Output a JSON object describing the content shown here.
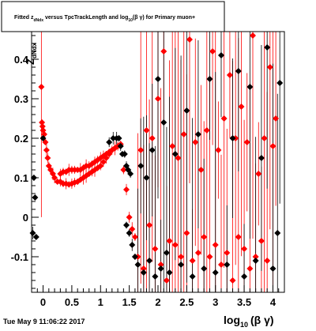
{
  "chart_data": {
    "type": "scatter",
    "title": "Fitted  z",
    "title_sub": "dNdx",
    "title_mid": "  versus TpcTrackLength and log",
    "title_sub2": "10",
    "title_end": "(β γ) for Primary muon+",
    "xlabel": "log",
    "xlabel_sub": "10",
    "xlabel_end": "(β γ)",
    "ylabel": "Z",
    "ylabel_sub": "dNdx",
    "timestamp": "Tue May  9 11:06:22 2017",
    "xlim": [
      -0.2,
      4.2
    ],
    "ylim": [
      -0.19,
      0.47
    ],
    "x_ticks": [
      "0",
      "0.5",
      "1",
      "1.5",
      "2",
      "2.5",
      "3",
      "3.5",
      "4"
    ],
    "y_ticks": [
      "-0.1",
      "0",
      "0.1",
      "0.2",
      "0.3",
      "0.4"
    ],
    "grid": false,
    "series": [
      {
        "color": "#ff0000",
        "marker": "diamond",
        "points": [
          [
            -0.03,
            0.33
          ],
          [
            -0.02,
            0.24
          ],
          [
            -0.01,
            0.23
          ],
          [
            0.0,
            0.22
          ],
          [
            0.02,
            0.21
          ],
          [
            0.04,
            0.19
          ],
          [
            0.06,
            0.17
          ],
          [
            0.08,
            0.15
          ],
          [
            0.1,
            0.13
          ],
          [
            0.13,
            0.12
          ],
          [
            0.17,
            0.11
          ],
          [
            0.2,
            0.1
          ],
          [
            0.25,
            0.09
          ],
          [
            0.3,
            0.09
          ],
          [
            0.35,
            0.085
          ],
          [
            0.4,
            0.085
          ],
          [
            0.45,
            0.083
          ],
          [
            0.5,
            0.085
          ],
          [
            0.55,
            0.088
          ],
          [
            0.6,
            0.09
          ],
          [
            0.65,
            0.095
          ],
          [
            0.7,
            0.1
          ],
          [
            0.75,
            0.105
          ],
          [
            0.8,
            0.11
          ],
          [
            0.85,
            0.115
          ],
          [
            0.9,
            0.12
          ],
          [
            0.95,
            0.125
          ],
          [
            1.0,
            0.13
          ],
          [
            1.05,
            0.14
          ],
          [
            1.1,
            0.15
          ],
          [
            1.15,
            0.16
          ],
          [
            1.2,
            0.17
          ],
          [
            1.25,
            0.175
          ],
          [
            1.3,
            0.18
          ],
          [
            1.35,
            0.185
          ],
          [
            0.3,
            0.11
          ],
          [
            0.35,
            0.115
          ],
          [
            0.4,
            0.115
          ],
          [
            0.45,
            0.12
          ],
          [
            0.5,
            0.12
          ],
          [
            0.55,
            0.12
          ],
          [
            0.6,
            0.12
          ],
          [
            0.65,
            0.12
          ],
          [
            0.7,
            0.125
          ],
          [
            0.75,
            0.13
          ],
          [
            0.8,
            0.13
          ],
          [
            0.85,
            0.135
          ],
          [
            0.9,
            0.14
          ],
          [
            0.95,
            0.145
          ],
          [
            1.0,
            0.15
          ],
          [
            1.05,
            0.155
          ],
          [
            1.1,
            0.16
          ],
          [
            1.15,
            0.165
          ],
          [
            1.2,
            0.17
          ],
          [
            1.25,
            0.175
          ],
          [
            1.3,
            0.18
          ],
          [
            1.4,
            0.12
          ],
          [
            1.45,
            0.07
          ],
          [
            1.5,
            0.0
          ],
          [
            1.55,
            -0.03
          ],
          [
            1.6,
            -0.05
          ],
          [
            1.65,
            -0.1
          ],
          [
            1.7,
            0.17
          ],
          [
            1.75,
            -0.13
          ],
          [
            1.8,
            0.22
          ],
          [
            1.85,
            -0.02
          ],
          [
            1.9,
            0.2
          ],
          [
            1.95,
            -0.08
          ],
          [
            2.0,
            0.3
          ],
          [
            2.05,
            -0.12
          ],
          [
            2.1,
            0.42
          ],
          [
            2.15,
            -0.16
          ],
          [
            2.2,
            -0.06
          ],
          [
            2.25,
            0.18
          ],
          [
            2.3,
            -0.07
          ],
          [
            2.35,
            0.15
          ],
          [
            2.4,
            -0.1
          ],
          [
            2.45,
            0.21
          ],
          [
            2.5,
            -0.04
          ],
          [
            2.55,
            0.45
          ],
          [
            2.6,
            -0.11
          ],
          [
            2.65,
            0.19
          ],
          [
            2.7,
            -0.09
          ],
          [
            2.75,
            0.12
          ],
          [
            2.8,
            -0.05
          ],
          [
            2.85,
            0.22
          ],
          [
            2.9,
            -0.1
          ],
          [
            2.95,
            0.42
          ],
          [
            3.0,
            -0.07
          ],
          [
            3.05,
            0.17
          ],
          [
            3.1,
            -0.12
          ],
          [
            3.15,
            0.25
          ],
          [
            3.2,
            -0.09
          ],
          [
            3.25,
            0.36
          ],
          [
            3.3,
            -0.16
          ],
          [
            3.35,
            0.2
          ],
          [
            3.4,
            -0.05
          ],
          [
            3.45,
            0.28
          ],
          [
            3.5,
            -0.08
          ],
          [
            3.55,
            0.19
          ],
          [
            3.6,
            -0.13
          ],
          [
            3.65,
            0.46
          ],
          [
            3.7,
            -0.1
          ],
          [
            3.75,
            0.11
          ],
          [
            3.8,
            -0.06
          ],
          [
            3.85,
            0.2
          ],
          [
            3.9,
            -0.11
          ],
          [
            3.95,
            0.38
          ],
          [
            4.0,
            0.18
          ],
          [
            4.05,
            0.25
          ]
        ]
      },
      {
        "color": "#000000",
        "marker": "diamond",
        "points": [
          [
            -0.18,
            -0.04
          ],
          [
            -0.16,
            0.1
          ],
          [
            -0.14,
            0.05
          ],
          [
            -0.12,
            -0.05
          ],
          [
            0.0,
            0.2
          ],
          [
            1.15,
            0.19
          ],
          [
            1.22,
            0.2
          ],
          [
            1.28,
            0.2
          ],
          [
            1.32,
            0.2
          ],
          [
            1.35,
            0.18
          ],
          [
            1.38,
            0.16
          ],
          [
            1.42,
            0.16
          ],
          [
            1.45,
            0.13
          ],
          [
            1.48,
            0.12
          ],
          [
            1.52,
            0.11
          ],
          [
            1.45,
            -0.02
          ],
          [
            1.5,
            -0.04
          ],
          [
            1.55,
            -0.07
          ],
          [
            1.6,
            -0.1
          ],
          [
            1.65,
            -0.12
          ],
          [
            1.7,
            0.13
          ],
          [
            1.75,
            -0.14
          ],
          [
            1.8,
            0.1
          ],
          [
            1.85,
            -0.11
          ],
          [
            1.9,
            0.17
          ],
          [
            1.95,
            -0.15
          ],
          [
            2.0,
            0.35
          ],
          [
            2.05,
            -0.13
          ],
          [
            2.1,
            0.24
          ],
          [
            2.15,
            -0.09
          ],
          [
            2.2,
            -0.14
          ],
          [
            2.3,
            0.16
          ],
          [
            2.4,
            -0.12
          ],
          [
            2.5,
            0.27
          ],
          [
            2.6,
            -0.15
          ],
          [
            2.7,
            0.21
          ],
          [
            2.8,
            -0.13
          ],
          [
            2.9,
            0.35
          ],
          [
            3.0,
            -0.14
          ],
          [
            3.1,
            0.41
          ],
          [
            3.2,
            -0.12
          ],
          [
            3.3,
            0.2
          ],
          [
            3.4,
            0.37
          ],
          [
            3.5,
            -0.15
          ],
          [
            3.6,
            0.33
          ],
          [
            3.7,
            -0.11
          ],
          [
            3.8,
            0.15
          ],
          [
            3.9,
            0.43
          ],
          [
            4.0,
            -0.13
          ],
          [
            4.08,
            -0.04
          ],
          [
            4.12,
            0.34
          ]
        ]
      }
    ]
  }
}
